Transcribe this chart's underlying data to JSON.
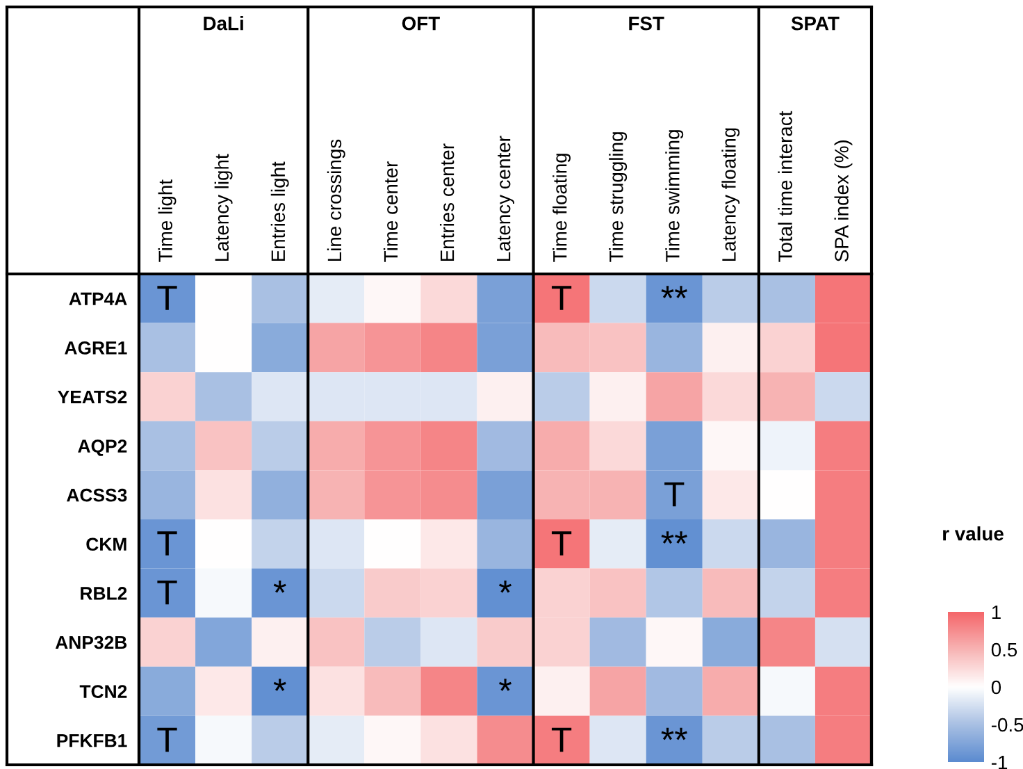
{
  "chart_data": {
    "type": "heatmap",
    "categories": [
      "Time light",
      "Latency light",
      "Entries light",
      "Line crossings",
      "Time center",
      "Entries center",
      "Latency center",
      "Time floating",
      "Time struggling",
      "Time swimming",
      "Latency floating",
      "Total time interact",
      "SPA index (%)"
    ],
    "y_categories": [
      "ATP4A",
      "AGRE1",
      "YEATS2",
      "AQP2",
      "ACSS3",
      "CKM",
      "RBL2",
      "ANP32B",
      "TCN2",
      "PFKFB1"
    ],
    "cells": [
      [
        -0.9,
        0,
        -0.5,
        -0.15,
        0.05,
        0.25,
        -0.8,
        0.9,
        -0.3,
        -0.9,
        -0.4,
        -0.5,
        0.9
      ],
      [
        -0.5,
        0,
        -0.7,
        0.6,
        0.7,
        0.8,
        -0.8,
        0.45,
        0.4,
        -0.6,
        0.1,
        0.3,
        0.9
      ],
      [
        0.3,
        -0.5,
        -0.2,
        -0.2,
        -0.2,
        -0.2,
        0.1,
        -0.4,
        0.1,
        0.6,
        0.25,
        0.5,
        -0.3
      ],
      [
        -0.5,
        0.4,
        -0.4,
        0.55,
        0.7,
        0.8,
        -0.55,
        0.55,
        0.25,
        -0.8,
        0.05,
        -0.1,
        0.85
      ],
      [
        -0.6,
        0.2,
        -0.65,
        0.5,
        0.7,
        0.75,
        -0.8,
        0.5,
        0.5,
        -0.8,
        0.15,
        0,
        0.85
      ],
      [
        -0.9,
        0,
        -0.35,
        -0.2,
        0,
        0.15,
        -0.6,
        0.9,
        -0.15,
        -0.95,
        -0.3,
        -0.6,
        0.85
      ],
      [
        -0.9,
        -0.05,
        -0.9,
        -0.3,
        0.35,
        0.3,
        -0.95,
        0.3,
        0.4,
        -0.45,
        0.45,
        -0.35,
        0.85
      ],
      [
        0.3,
        -0.75,
        0.1,
        0.4,
        -0.4,
        -0.2,
        0.35,
        0.3,
        -0.55,
        0.05,
        -0.7,
        0.8,
        -0.25
      ],
      [
        -0.7,
        0.15,
        -0.95,
        0.2,
        0.45,
        0.8,
        -0.9,
        0.1,
        0.6,
        -0.55,
        0.55,
        -0.05,
        0.85
      ],
      [
        -0.85,
        -0.05,
        -0.4,
        -0.15,
        0.05,
        0.2,
        0.75,
        0.85,
        -0.2,
        -0.9,
        -0.4,
        -0.5,
        0.85
      ]
    ],
    "cell_labels": [
      [
        "T",
        null,
        null,
        null,
        null,
        null,
        null,
        "T",
        null,
        "**",
        null,
        null,
        null
      ],
      [
        null,
        null,
        null,
        null,
        null,
        null,
        null,
        null,
        null,
        null,
        null,
        null,
        null
      ],
      [
        null,
        null,
        null,
        null,
        null,
        null,
        null,
        null,
        null,
        null,
        null,
        null,
        null
      ],
      [
        null,
        null,
        null,
        null,
        null,
        null,
        null,
        null,
        null,
        null,
        null,
        null,
        null
      ],
      [
        null,
        null,
        null,
        null,
        null,
        null,
        null,
        null,
        null,
        "T",
        null,
        null,
        null
      ],
      [
        "T",
        null,
        null,
        null,
        null,
        null,
        null,
        "T",
        null,
        "**",
        null,
        null,
        null
      ],
      [
        "T",
        null,
        "*",
        null,
        null,
        null,
        "*",
        null,
        null,
        null,
        null,
        null,
        null
      ],
      [
        null,
        null,
        null,
        null,
        null,
        null,
        null,
        null,
        null,
        null,
        null,
        null,
        null
      ],
      [
        null,
        null,
        "*",
        null,
        null,
        null,
        "*",
        null,
        null,
        null,
        null,
        null,
        null
      ],
      [
        "T",
        null,
        null,
        null,
        null,
        null,
        null,
        "T",
        null,
        "**",
        null,
        null,
        null
      ]
    ],
    "clabel": "r value",
    "clim": [
      -1,
      1
    ],
    "cticks": [
      1,
      0.5,
      0,
      -0.5,
      -1
    ],
    "annotations": [
      "DaLi",
      "OFT",
      "FST",
      "SPAT"
    ]
  }
}
